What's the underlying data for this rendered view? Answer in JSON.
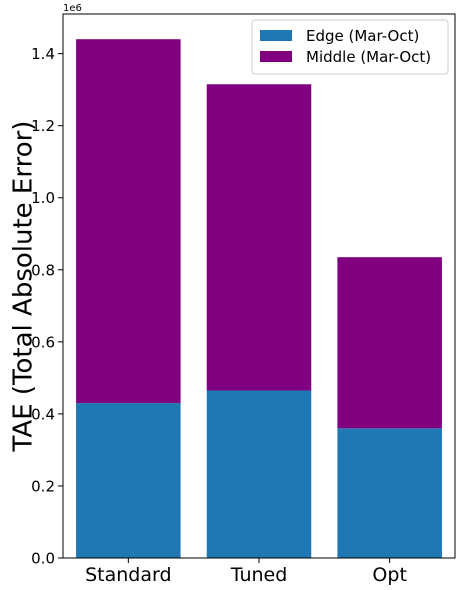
{
  "chart_data": {
    "type": "bar",
    "stacked": true,
    "categories": [
      "Standard",
      "Tuned",
      "Opt"
    ],
    "series": [
      {
        "name": "Edge (Mar-Oct)",
        "values": [
          430000,
          465000,
          360000
        ],
        "color": "#1f77b4"
      },
      {
        "name": "Middle (Mar-Oct)",
        "values": [
          1010000,
          850000,
          475000
        ],
        "color": "#800080"
      }
    ],
    "title": "",
    "xlabel": "",
    "ylabel": "TAE (Total Absolute Error)",
    "ylim": [
      0,
      1510000
    ],
    "yticks": [
      0,
      200000,
      400000,
      600000,
      800000,
      1000000,
      1200000,
      1400000
    ],
    "ytick_labels": [
      "0.0",
      "0.2",
      "0.4",
      "0.6",
      "0.8",
      "1.0",
      "1.2",
      "1.4"
    ],
    "y_offset_label": "1e6",
    "grid": false,
    "legend_position": "top-right"
  }
}
